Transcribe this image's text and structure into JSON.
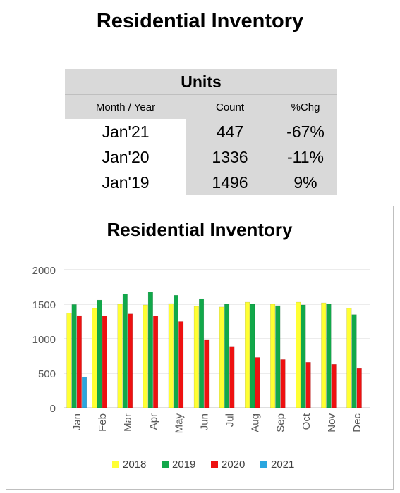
{
  "page": {
    "title": "Residential Inventory"
  },
  "units_table": {
    "header": "Units",
    "columns": [
      "Month / Year",
      "Count",
      "%Chg"
    ],
    "rows": [
      {
        "period": "Jan'21",
        "count": "447",
        "chg": "-67%"
      },
      {
        "period": "Jan'20",
        "count": "1336",
        "chg": "-11%"
      },
      {
        "period": "Jan'19",
        "count": "1496",
        "chg": "9%"
      }
    ]
  },
  "chart_data": {
    "type": "bar",
    "title": "Residential Inventory",
    "categories": [
      "Jan",
      "Feb",
      "Mar",
      "Apr",
      "May",
      "Jun",
      "Jul",
      "Aug",
      "Sep",
      "Oct",
      "Nov",
      "Dec"
    ],
    "ylim": [
      0,
      2000
    ],
    "yticks": [
      0,
      500,
      1000,
      1500,
      2000
    ],
    "grid": true,
    "legend_position": "bottom",
    "series": [
      {
        "name": "2018",
        "color": "#ffff33",
        "values": [
          1370,
          1440,
          1500,
          1490,
          1510,
          1470,
          1460,
          1530,
          1500,
          1530,
          1520,
          1440
        ]
      },
      {
        "name": "2019",
        "color": "#11a84a",
        "values": [
          1496,
          1560,
          1650,
          1680,
          1630,
          1580,
          1500,
          1500,
          1480,
          1490,
          1500,
          1350
        ]
      },
      {
        "name": "2020",
        "color": "#ee1111",
        "values": [
          1336,
          1330,
          1360,
          1330,
          1250,
          980,
          890,
          730,
          700,
          660,
          630,
          570
        ]
      },
      {
        "name": "2021",
        "color": "#2aa6df",
        "values": [
          447,
          0,
          0,
          0,
          0,
          0,
          0,
          0,
          0,
          0,
          0,
          0
        ]
      }
    ]
  }
}
